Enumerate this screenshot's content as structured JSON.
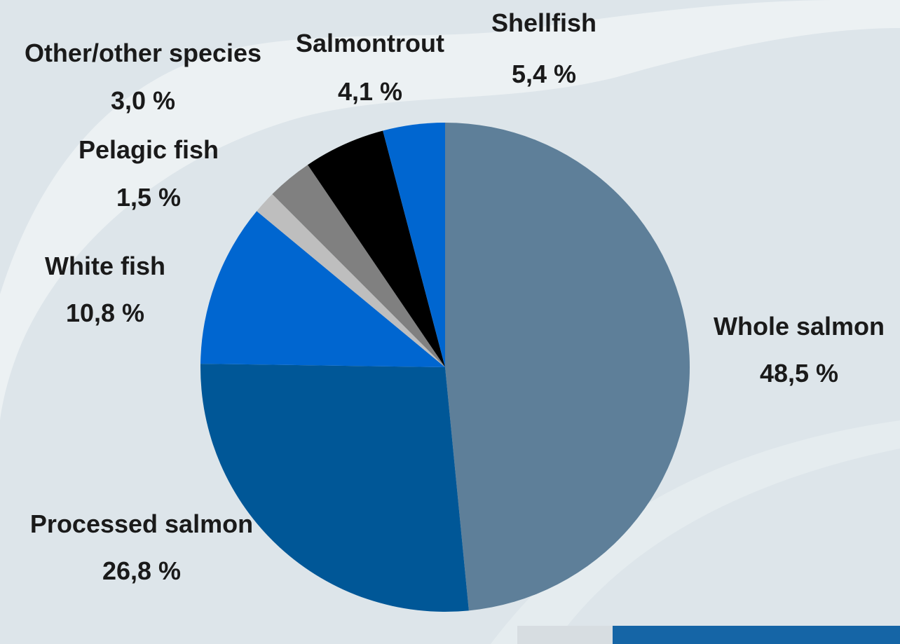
{
  "colors": {
    "background": "#dde5ea",
    "swoosh": "#ecf1f3",
    "label_text": "#1a1a1a",
    "badge_blue": "#1565a6"
  },
  "chart_data": {
    "type": "pie",
    "start_angle_deg": 0,
    "direction": "clockwise",
    "title": "",
    "legend": "none",
    "slices": [
      {
        "label": "Whole salmon",
        "value": 48.5,
        "display": "48,5 %",
        "color": "#5e7f99"
      },
      {
        "label": "Processed salmon",
        "value": 26.8,
        "display": "26,8 %",
        "color": "#005797"
      },
      {
        "label": "White fish",
        "value": 10.8,
        "display": "10,8 %",
        "color": "#0066d0"
      },
      {
        "label": "Pelagic fish",
        "value": 1.5,
        "display": "1,5 %",
        "color": "#bebebe"
      },
      {
        "label": "Other/other species",
        "value": 3.0,
        "display": "3,0 %",
        "color": "#808080"
      },
      {
        "label": "Shellfish",
        "value": 5.4,
        "display": "5,4 %",
        "color": "#000000"
      },
      {
        "label": "Salmontrout",
        "value": 4.1,
        "display": "4,1 %",
        "color": "#0066d0"
      }
    ]
  }
}
